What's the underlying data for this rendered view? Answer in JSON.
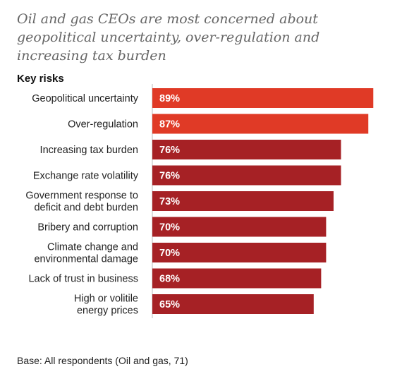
{
  "title": "Oil and gas CEOs are most concerned about geopolitical uncertainty, over-regulation and increasing tax burden",
  "footnote": "Base: All respondents (Oil and gas, 71)",
  "colors": {
    "highlight": "#e03a26",
    "default": "#a62125"
  },
  "chart_data": {
    "type": "bar",
    "orientation": "horizontal",
    "title": "Key risks",
    "categories": [
      "Geopolitical uncertainty",
      "Over-regulation",
      "Increasing tax burden",
      "Exchange rate volatility",
      "Government response to\ndeficit and debt burden",
      "Bribery and corruption",
      "Climate change and\nenvironmental damage",
      "Lack of trust in business",
      "High or volitile\nenergy prices"
    ],
    "values": [
      89,
      87,
      76,
      76,
      73,
      70,
      70,
      68,
      65
    ],
    "value_labels": [
      "89%",
      "87%",
      "76%",
      "76%",
      "73%",
      "70%",
      "70%",
      "68%",
      "65%"
    ],
    "highlighted": [
      true,
      true,
      false,
      false,
      false,
      false,
      false,
      false,
      false
    ],
    "xlim": [
      0,
      100
    ],
    "grid": false,
    "legend": "none"
  }
}
